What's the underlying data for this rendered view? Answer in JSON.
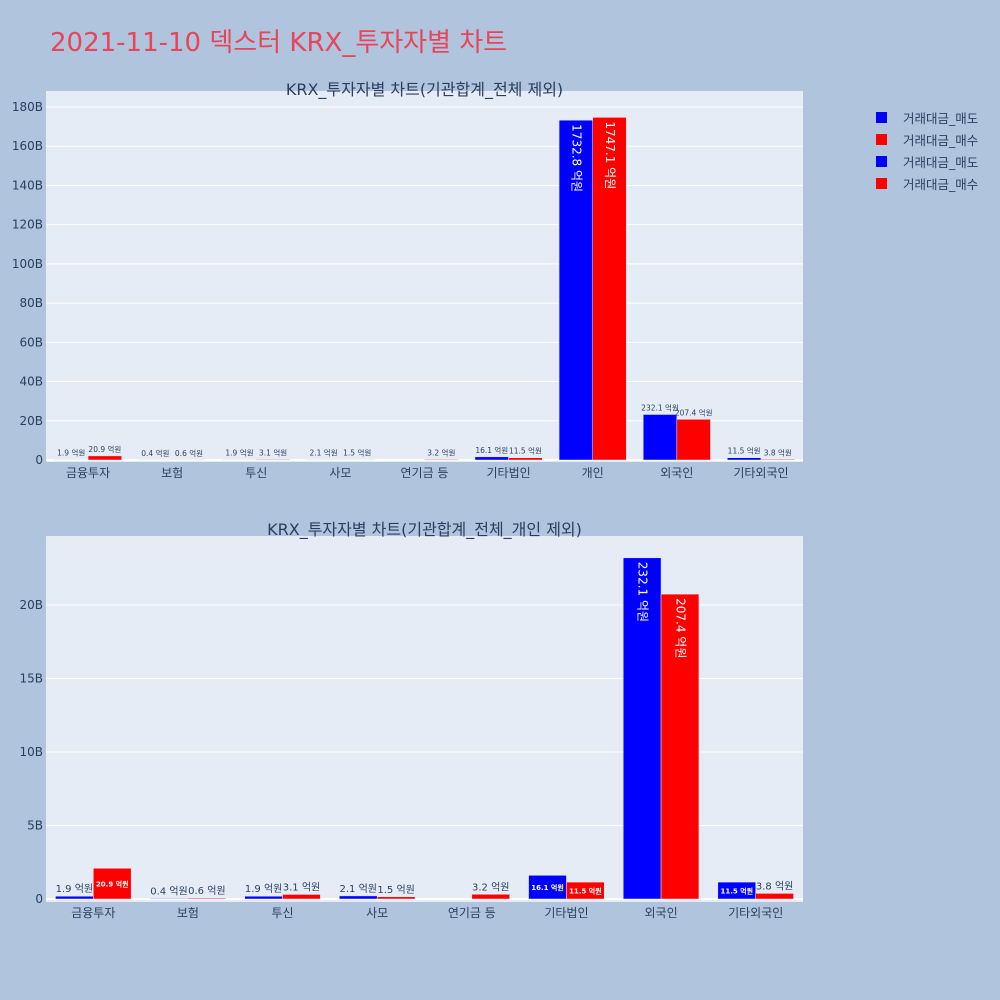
{
  "page_title": "2021-11-10 덱스터 KRX_투자자별 차트",
  "legend": {
    "placement": "top-right",
    "items": [
      {
        "label": "거래대금_매도",
        "color": "#0000ff"
      },
      {
        "label": "거래대금_매수",
        "color": "#ff0000"
      },
      {
        "label": "거래대금_매도",
        "color": "#0000ff"
      },
      {
        "label": "거래대금_매수",
        "color": "#ff0000"
      }
    ]
  },
  "chart_data": [
    {
      "type": "bar",
      "title": "KRX_투자자별 차트(기관합계_전체 제외)",
      "categories": [
        "금융투자",
        "보험",
        "투신",
        "사모",
        "연기금 등",
        "기타법인",
        "개인",
        "외국인",
        "기타외국인"
      ],
      "ylim": [
        0,
        180
      ],
      "yticks": [
        0,
        20,
        40,
        60,
        80,
        100,
        120,
        140,
        160,
        180
      ],
      "ytick_labels": [
        "0",
        "20B",
        "40B",
        "60B",
        "80B",
        "100B",
        "120B",
        "140B",
        "160B",
        "180B"
      ],
      "grid": true,
      "series": [
        {
          "name": "거래대금_매도",
          "color": "#0000ff",
          "values": [
            0.19,
            0.04,
            0.19,
            0.21,
            0,
            1.61,
            173.28,
            23.21,
            1.15
          ],
          "labels": [
            "1.9 억원",
            "0.4 억원",
            "1.9 억원",
            "2.1 억원",
            "",
            "16.1 억원",
            "1732.8 억원",
            "232.1 억원",
            "11.5 억원"
          ]
        },
        {
          "name": "거래대금_매수",
          "color": "#ff0000",
          "values": [
            2.09,
            0.06,
            0.31,
            0.15,
            0.32,
            1.15,
            174.71,
            20.74,
            0.38
          ],
          "labels": [
            "20.9 억원",
            "0.6 억원",
            "3.1 억원",
            "1.5 억원",
            "3.2 억원",
            "11.5 억원",
            "1747.1 억원",
            "207.4 억원",
            "3.8 억원"
          ]
        }
      ]
    },
    {
      "type": "bar",
      "title": "KRX_투자자별 차트(기관합계_전체_개인 제외)",
      "categories": [
        "금융투자",
        "보험",
        "투신",
        "사모",
        "연기금 등",
        "기타법인",
        "외국인",
        "기타외국인"
      ],
      "ylim": [
        0,
        24
      ],
      "yticks": [
        0,
        5,
        10,
        15,
        20
      ],
      "ytick_labels": [
        "0",
        "5B",
        "10B",
        "15B",
        "20B"
      ],
      "grid": true,
      "series": [
        {
          "name": "거래대금_매도",
          "color": "#0000ff",
          "values": [
            0.19,
            0.04,
            0.19,
            0.21,
            0,
            1.61,
            23.21,
            1.15
          ],
          "labels": [
            "1.9 억원",
            "0.4 억원",
            "1.9 억원",
            "2.1 억원",
            "",
            "16.1 억원",
            "232.1 억원",
            "11.5 억원"
          ]
        },
        {
          "name": "거래대금_매수",
          "color": "#ff0000",
          "values": [
            2.09,
            0.06,
            0.31,
            0.15,
            0.32,
            1.15,
            20.74,
            0.38
          ],
          "labels": [
            "20.9 억원",
            "0.6 억원",
            "3.1 억원",
            "1.5 억원",
            "3.2 억원",
            "11.5 억원",
            "207.4 억원",
            "3.8 억원"
          ]
        }
      ]
    }
  ]
}
